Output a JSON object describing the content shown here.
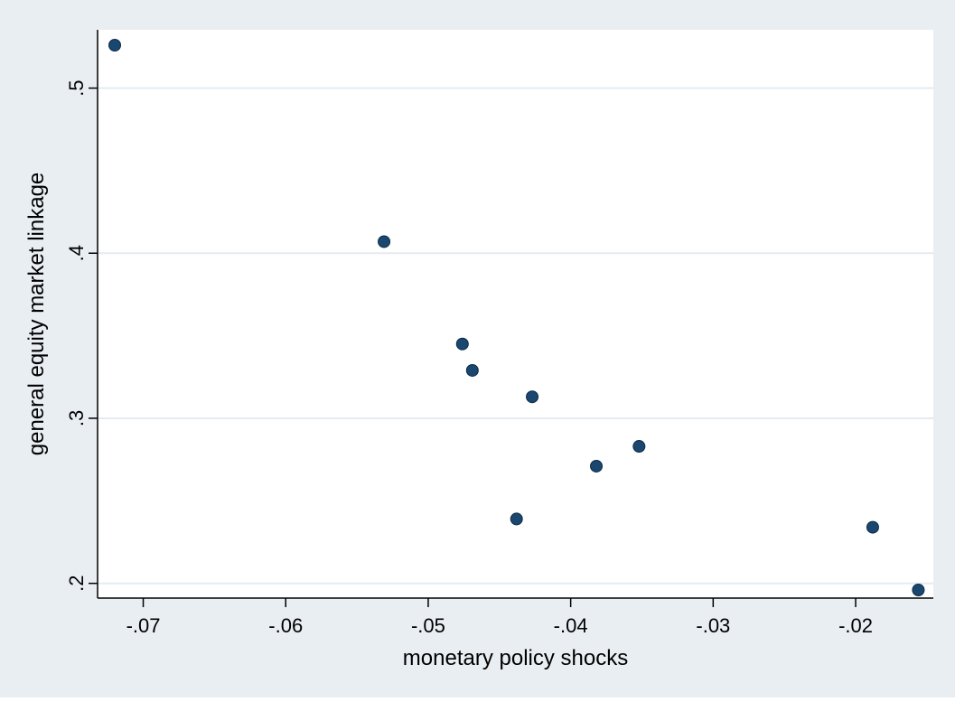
{
  "chart_data": {
    "type": "scatter",
    "title": "",
    "xlabel": "monetary policy shocks",
    "ylabel": "general equity market linkage",
    "xlim": [
      -0.072,
      -0.0155
    ],
    "ylim": [
      0.196,
      0.526
    ],
    "x_ticks": [
      {
        "value": -0.07,
        "label": "-.07"
      },
      {
        "value": -0.06,
        "label": "-.06"
      },
      {
        "value": -0.05,
        "label": "-.05"
      },
      {
        "value": -0.04,
        "label": "-.04"
      },
      {
        "value": -0.03,
        "label": "-.03"
      },
      {
        "value": -0.02,
        "label": "-.02"
      }
    ],
    "y_ticks": [
      {
        "value": 0.2,
        "label": ".2"
      },
      {
        "value": 0.3,
        "label": ".3"
      },
      {
        "value": 0.4,
        "label": ".4"
      },
      {
        "value": 0.5,
        "label": ".5"
      }
    ],
    "grid": true,
    "legend": "none",
    "colors": {
      "outer_background": "#e9eef3",
      "plot_background": "#ffffff",
      "grid": "#e6ebf0",
      "axis": "#000000",
      "marker": "#1a476f",
      "marker_outline": "#0d2a45"
    },
    "points": [
      {
        "x": -0.072,
        "y": 0.526
      },
      {
        "x": -0.0531,
        "y": 0.407
      },
      {
        "x": -0.0476,
        "y": 0.345
      },
      {
        "x": -0.0469,
        "y": 0.329
      },
      {
        "x": -0.0427,
        "y": 0.313
      },
      {
        "x": -0.0438,
        "y": 0.239
      },
      {
        "x": -0.0382,
        "y": 0.271
      },
      {
        "x": -0.0352,
        "y": 0.283
      },
      {
        "x": -0.0188,
        "y": 0.234
      },
      {
        "x": -0.0156,
        "y": 0.196
      }
    ]
  }
}
